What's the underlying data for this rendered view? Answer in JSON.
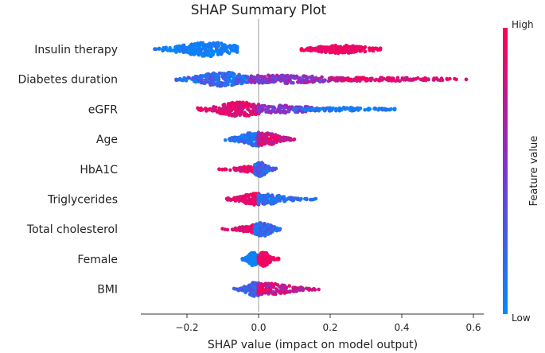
{
  "chart_data": {
    "type": "scatter",
    "subtype": "shap-beeswarm",
    "title": "SHAP Summary Plot",
    "xlabel": "SHAP value (impact on model output)",
    "ylabel": "",
    "xlim": [
      -0.33,
      0.62
    ],
    "xticks": [
      {
        "value": -0.2,
        "label": "−0.2"
      },
      {
        "value": 0.0,
        "label": "0.0"
      },
      {
        "value": 0.2,
        "label": "0.2"
      },
      {
        "value": 0.4,
        "label": "0.4"
      },
      {
        "value": 0.6,
        "label": "0.6"
      }
    ],
    "zero_line": 0.0,
    "features": [
      {
        "name": "Insulin therapy",
        "groups": [
          {
            "min": -0.29,
            "max": -0.06,
            "mode": -0.14,
            "spread": 0.06,
            "lo": 0.0,
            "hi": 0.15,
            "n": 240,
            "h": 1.0
          },
          {
            "min": 0.12,
            "max": 0.34,
            "mode": 0.23,
            "spread": 0.06,
            "lo": 0.85,
            "hi": 1.0,
            "n": 190,
            "h": 0.55
          }
        ]
      },
      {
        "name": "Diabetes duration",
        "groups": [
          {
            "min": -0.23,
            "max": 0.0,
            "mode": -0.1,
            "spread": 0.05,
            "lo": 0.0,
            "hi": 0.4,
            "n": 230,
            "h": 1.0
          },
          {
            "min": -0.02,
            "max": 0.25,
            "mode": 0.06,
            "spread": 0.1,
            "lo": 0.35,
            "hi": 0.85,
            "n": 220,
            "h": 0.6
          },
          {
            "min": 0.2,
            "max": 0.58,
            "mode": 0.33,
            "spread": 0.15,
            "lo": 0.7,
            "hi": 1.0,
            "n": 150,
            "h": 0.25
          }
        ]
      },
      {
        "name": "eGFR",
        "groups": [
          {
            "min": -0.17,
            "max": 0.0,
            "mode": -0.05,
            "spread": 0.05,
            "lo": 0.75,
            "hi": 1.0,
            "n": 230,
            "h": 1.0
          },
          {
            "min": 0.0,
            "max": 0.2,
            "mode": 0.05,
            "spread": 0.08,
            "lo": 0.35,
            "hi": 0.7,
            "n": 160,
            "h": 0.55
          },
          {
            "min": 0.1,
            "max": 0.38,
            "mode": 0.22,
            "spread": 0.1,
            "lo": 0.0,
            "hi": 0.2,
            "n": 120,
            "h": 0.25
          }
        ]
      },
      {
        "name": "Age",
        "groups": [
          {
            "min": -0.1,
            "max": 0.0,
            "mode": -0.01,
            "spread": 0.03,
            "lo": 0.0,
            "hi": 0.35,
            "n": 160,
            "h": 1.0
          },
          {
            "min": 0.0,
            "max": 0.1,
            "mode": 0.02,
            "spread": 0.03,
            "lo": 0.65,
            "hi": 1.0,
            "n": 160,
            "h": 0.9
          }
        ]
      },
      {
        "name": "HbA1C",
        "groups": [
          {
            "min": -0.11,
            "max": 0.0,
            "mode": -0.01,
            "spread": 0.04,
            "lo": 0.8,
            "hi": 1.0,
            "n": 110,
            "h": 0.45
          },
          {
            "min": -0.01,
            "max": 0.05,
            "mode": 0.005,
            "spread": 0.015,
            "lo": 0.0,
            "hi": 0.4,
            "n": 110,
            "h": 1.0
          }
        ]
      },
      {
        "name": "Triglycerides",
        "groups": [
          {
            "min": -0.09,
            "max": 0.0,
            "mode": -0.01,
            "spread": 0.03,
            "lo": 0.8,
            "hi": 1.0,
            "n": 130,
            "h": 0.8
          },
          {
            "min": 0.0,
            "max": 0.16,
            "mode": 0.02,
            "spread": 0.04,
            "lo": 0.0,
            "hi": 0.3,
            "n": 150,
            "h": 0.7
          }
        ]
      },
      {
        "name": "Total cholesterol",
        "groups": [
          {
            "min": -0.11,
            "max": 0.0,
            "mode": -0.01,
            "spread": 0.03,
            "lo": 0.8,
            "hi": 1.0,
            "n": 130,
            "h": 0.6
          },
          {
            "min": -0.01,
            "max": 0.06,
            "mode": 0.01,
            "spread": 0.02,
            "lo": 0.0,
            "hi": 0.45,
            "n": 150,
            "h": 1.0
          }
        ]
      },
      {
        "name": "Female",
        "groups": [
          {
            "min": -0.05,
            "max": 0.0,
            "mode": -0.015,
            "spread": 0.01,
            "lo": 0.0,
            "hi": 0.12,
            "n": 150,
            "h": 1.0
          },
          {
            "min": 0.0,
            "max": 0.06,
            "mode": 0.015,
            "spread": 0.012,
            "lo": 0.88,
            "hi": 1.0,
            "n": 150,
            "h": 1.0
          }
        ]
      },
      {
        "name": "BMI",
        "groups": [
          {
            "min": -0.07,
            "max": 0.0,
            "mode": -0.01,
            "spread": 0.02,
            "lo": 0.0,
            "hi": 0.4,
            "n": 140,
            "h": 1.0
          },
          {
            "min": 0.0,
            "max": 0.17,
            "mode": 0.03,
            "spread": 0.05,
            "lo": 0.6,
            "hi": 1.0,
            "n": 180,
            "h": 0.8
          }
        ]
      }
    ],
    "colorbar": {
      "label": "Feature value",
      "high_label": "High",
      "low_label": "Low",
      "low_color": "#008afb",
      "mid_color": "#7b36d4",
      "high_color": "#ff0052"
    }
  }
}
